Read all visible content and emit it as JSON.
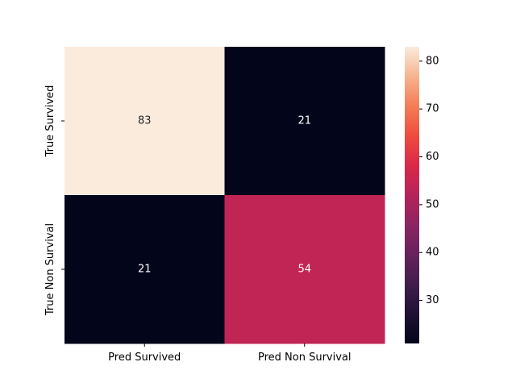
{
  "chart_data": {
    "type": "heatmap",
    "title": "",
    "x_labels": [
      "Pred Survived",
      "Pred Non Survival"
    ],
    "y_labels": [
      "True Survived",
      "True Non Survival"
    ],
    "values": [
      [
        83,
        21
      ],
      [
        21,
        54
      ]
    ],
    "annotations": true,
    "colormap": "rocket",
    "vmin": 21,
    "vmax": 83,
    "colorbar_ticks": [
      30,
      40,
      50,
      60,
      70,
      80
    ],
    "colorbar": true,
    "annotation_colors": {
      "on_light": "#262626",
      "on_dark": "#ffffff"
    }
  }
}
